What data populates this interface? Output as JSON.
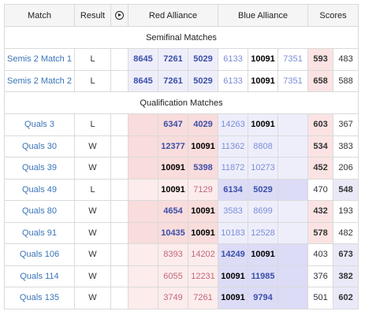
{
  "header": {
    "match": "Match",
    "result": "Result",
    "video_icon": "play-circle-icon",
    "red": "Red Alliance",
    "blue": "Blue Alliance",
    "scores": "Scores"
  },
  "sections": {
    "semis": "Semifinal Matches",
    "quals": "Qualification Matches"
  },
  "semis": [
    {
      "match": "Semis 2 Match 1",
      "result": "L",
      "red": [
        "8645",
        "7261",
        "5029"
      ],
      "blue": [
        "6133",
        "10091",
        "7351"
      ],
      "red_score": "593",
      "blue_score": "483"
    },
    {
      "match": "Semis 2 Match 2",
      "result": "L",
      "red": [
        "8645",
        "7261",
        "5029"
      ],
      "blue": [
        "6133",
        "10091",
        "7351"
      ],
      "red_score": "658",
      "blue_score": "588"
    }
  ],
  "quals": [
    {
      "match": "Quals 3",
      "result": "L",
      "red": [
        "6347",
        "4029"
      ],
      "blue": [
        "14263",
        "10091"
      ],
      "red_score": "603",
      "blue_score": "367"
    },
    {
      "match": "Quals 30",
      "result": "W",
      "red": [
        "12377",
        "10091"
      ],
      "blue": [
        "11362",
        "8808"
      ],
      "red_score": "534",
      "blue_score": "383"
    },
    {
      "match": "Quals 39",
      "result": "W",
      "red": [
        "10091",
        "5398"
      ],
      "blue": [
        "11872",
        "10273"
      ],
      "red_score": "452",
      "blue_score": "206"
    },
    {
      "match": "Quals 49",
      "result": "L",
      "red": [
        "10091",
        "7129"
      ],
      "blue": [
        "6134",
        "5029"
      ],
      "red_score": "470",
      "blue_score": "548"
    },
    {
      "match": "Quals 80",
      "result": "W",
      "red": [
        "4654",
        "10091"
      ],
      "blue": [
        "3583",
        "8699"
      ],
      "red_score": "432",
      "blue_score": "193"
    },
    {
      "match": "Quals 91",
      "result": "W",
      "red": [
        "10435",
        "10091"
      ],
      "blue": [
        "10183",
        "12528"
      ],
      "red_score": "578",
      "blue_score": "482"
    },
    {
      "match": "Quals 106",
      "result": "W",
      "red": [
        "8393",
        "14202"
      ],
      "blue": [
        "14249",
        "10091"
      ],
      "red_score": "403",
      "blue_score": "673"
    },
    {
      "match": "Quals 114",
      "result": "W",
      "red": [
        "6055",
        "12231"
      ],
      "blue": [
        "10091",
        "11985"
      ],
      "red_score": "376",
      "blue_score": "382"
    },
    {
      "match": "Quals 135",
      "result": "W",
      "red": [
        "3749",
        "7261"
      ],
      "blue": [
        "10091",
        "9794"
      ],
      "red_score": "501",
      "blue_score": "602"
    }
  ]
}
